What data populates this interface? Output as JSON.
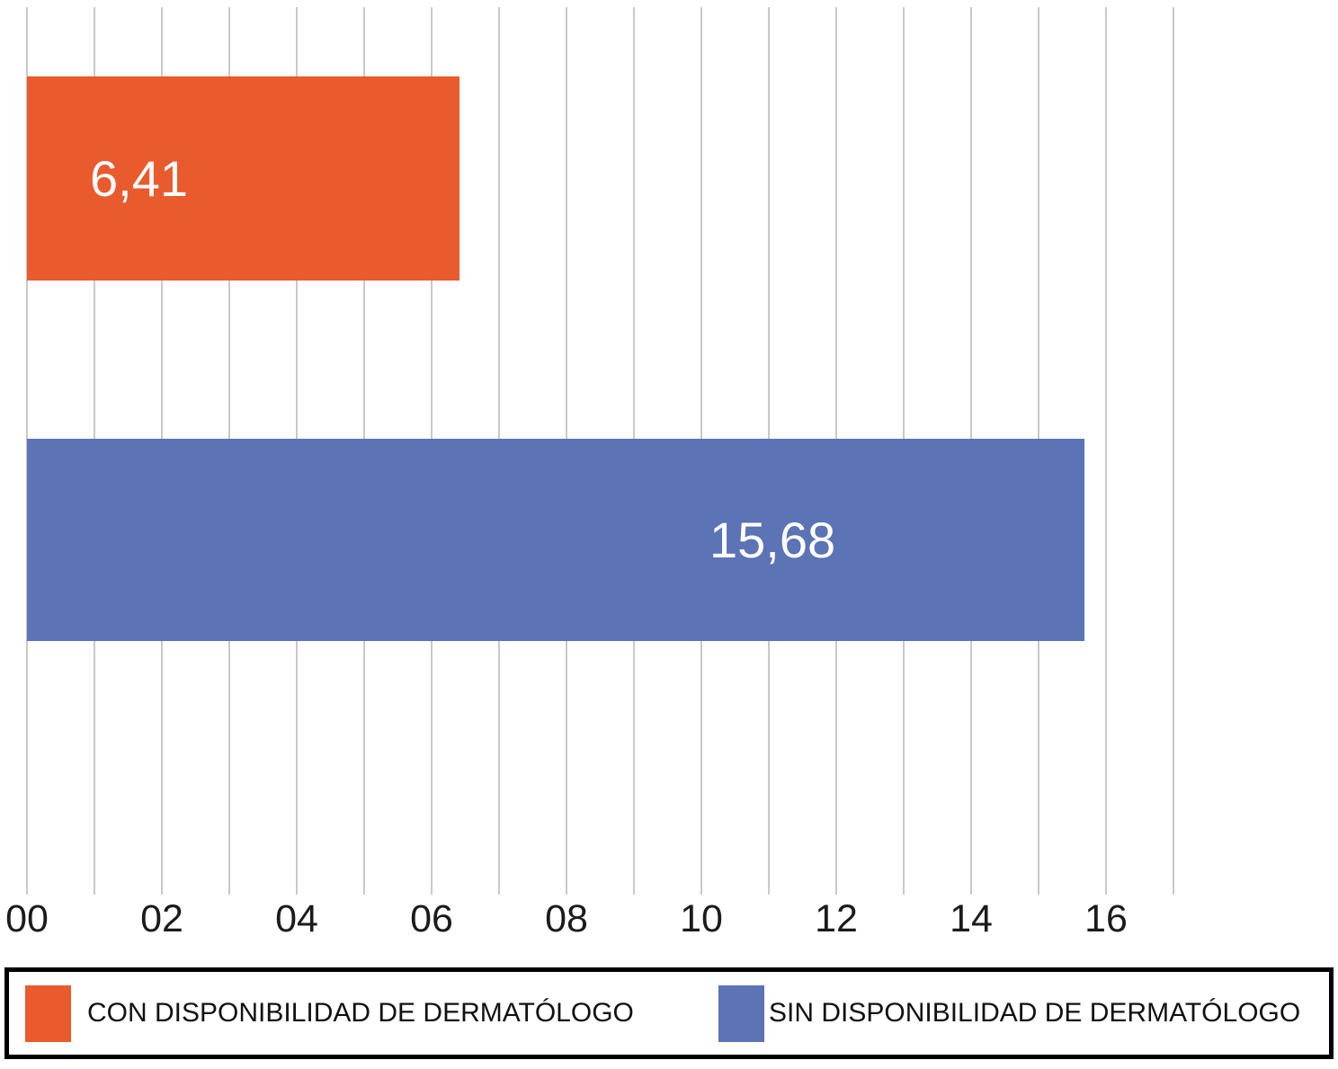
{
  "chart_data": {
    "type": "bar",
    "orientation": "horizontal",
    "series": [
      {
        "name": "CON DISPONIBILIDAD DE DERMATÓLOGO",
        "value": 6.41,
        "value_label": "6,41",
        "color": "#E95A2D"
      },
      {
        "name": "SIN DISPONIBILIDAD DE DERMATÓLOGO",
        "value": 15.68,
        "value_label": "15,68",
        "color": "#5C73B5"
      }
    ],
    "xlim": [
      0,
      17
    ],
    "gridline_step": 1,
    "x_tick_step": 2,
    "x_tick_labels": [
      "00",
      "02",
      "04",
      "06",
      "08",
      "10",
      "12",
      "14",
      "16"
    ],
    "grid": true,
    "legend_position": "bottom",
    "value_label_color": "#FFFFFF",
    "gridline_color": "#C9C9C9",
    "legend_border_color": "#000000",
    "background_color": "#FFFFFF"
  }
}
